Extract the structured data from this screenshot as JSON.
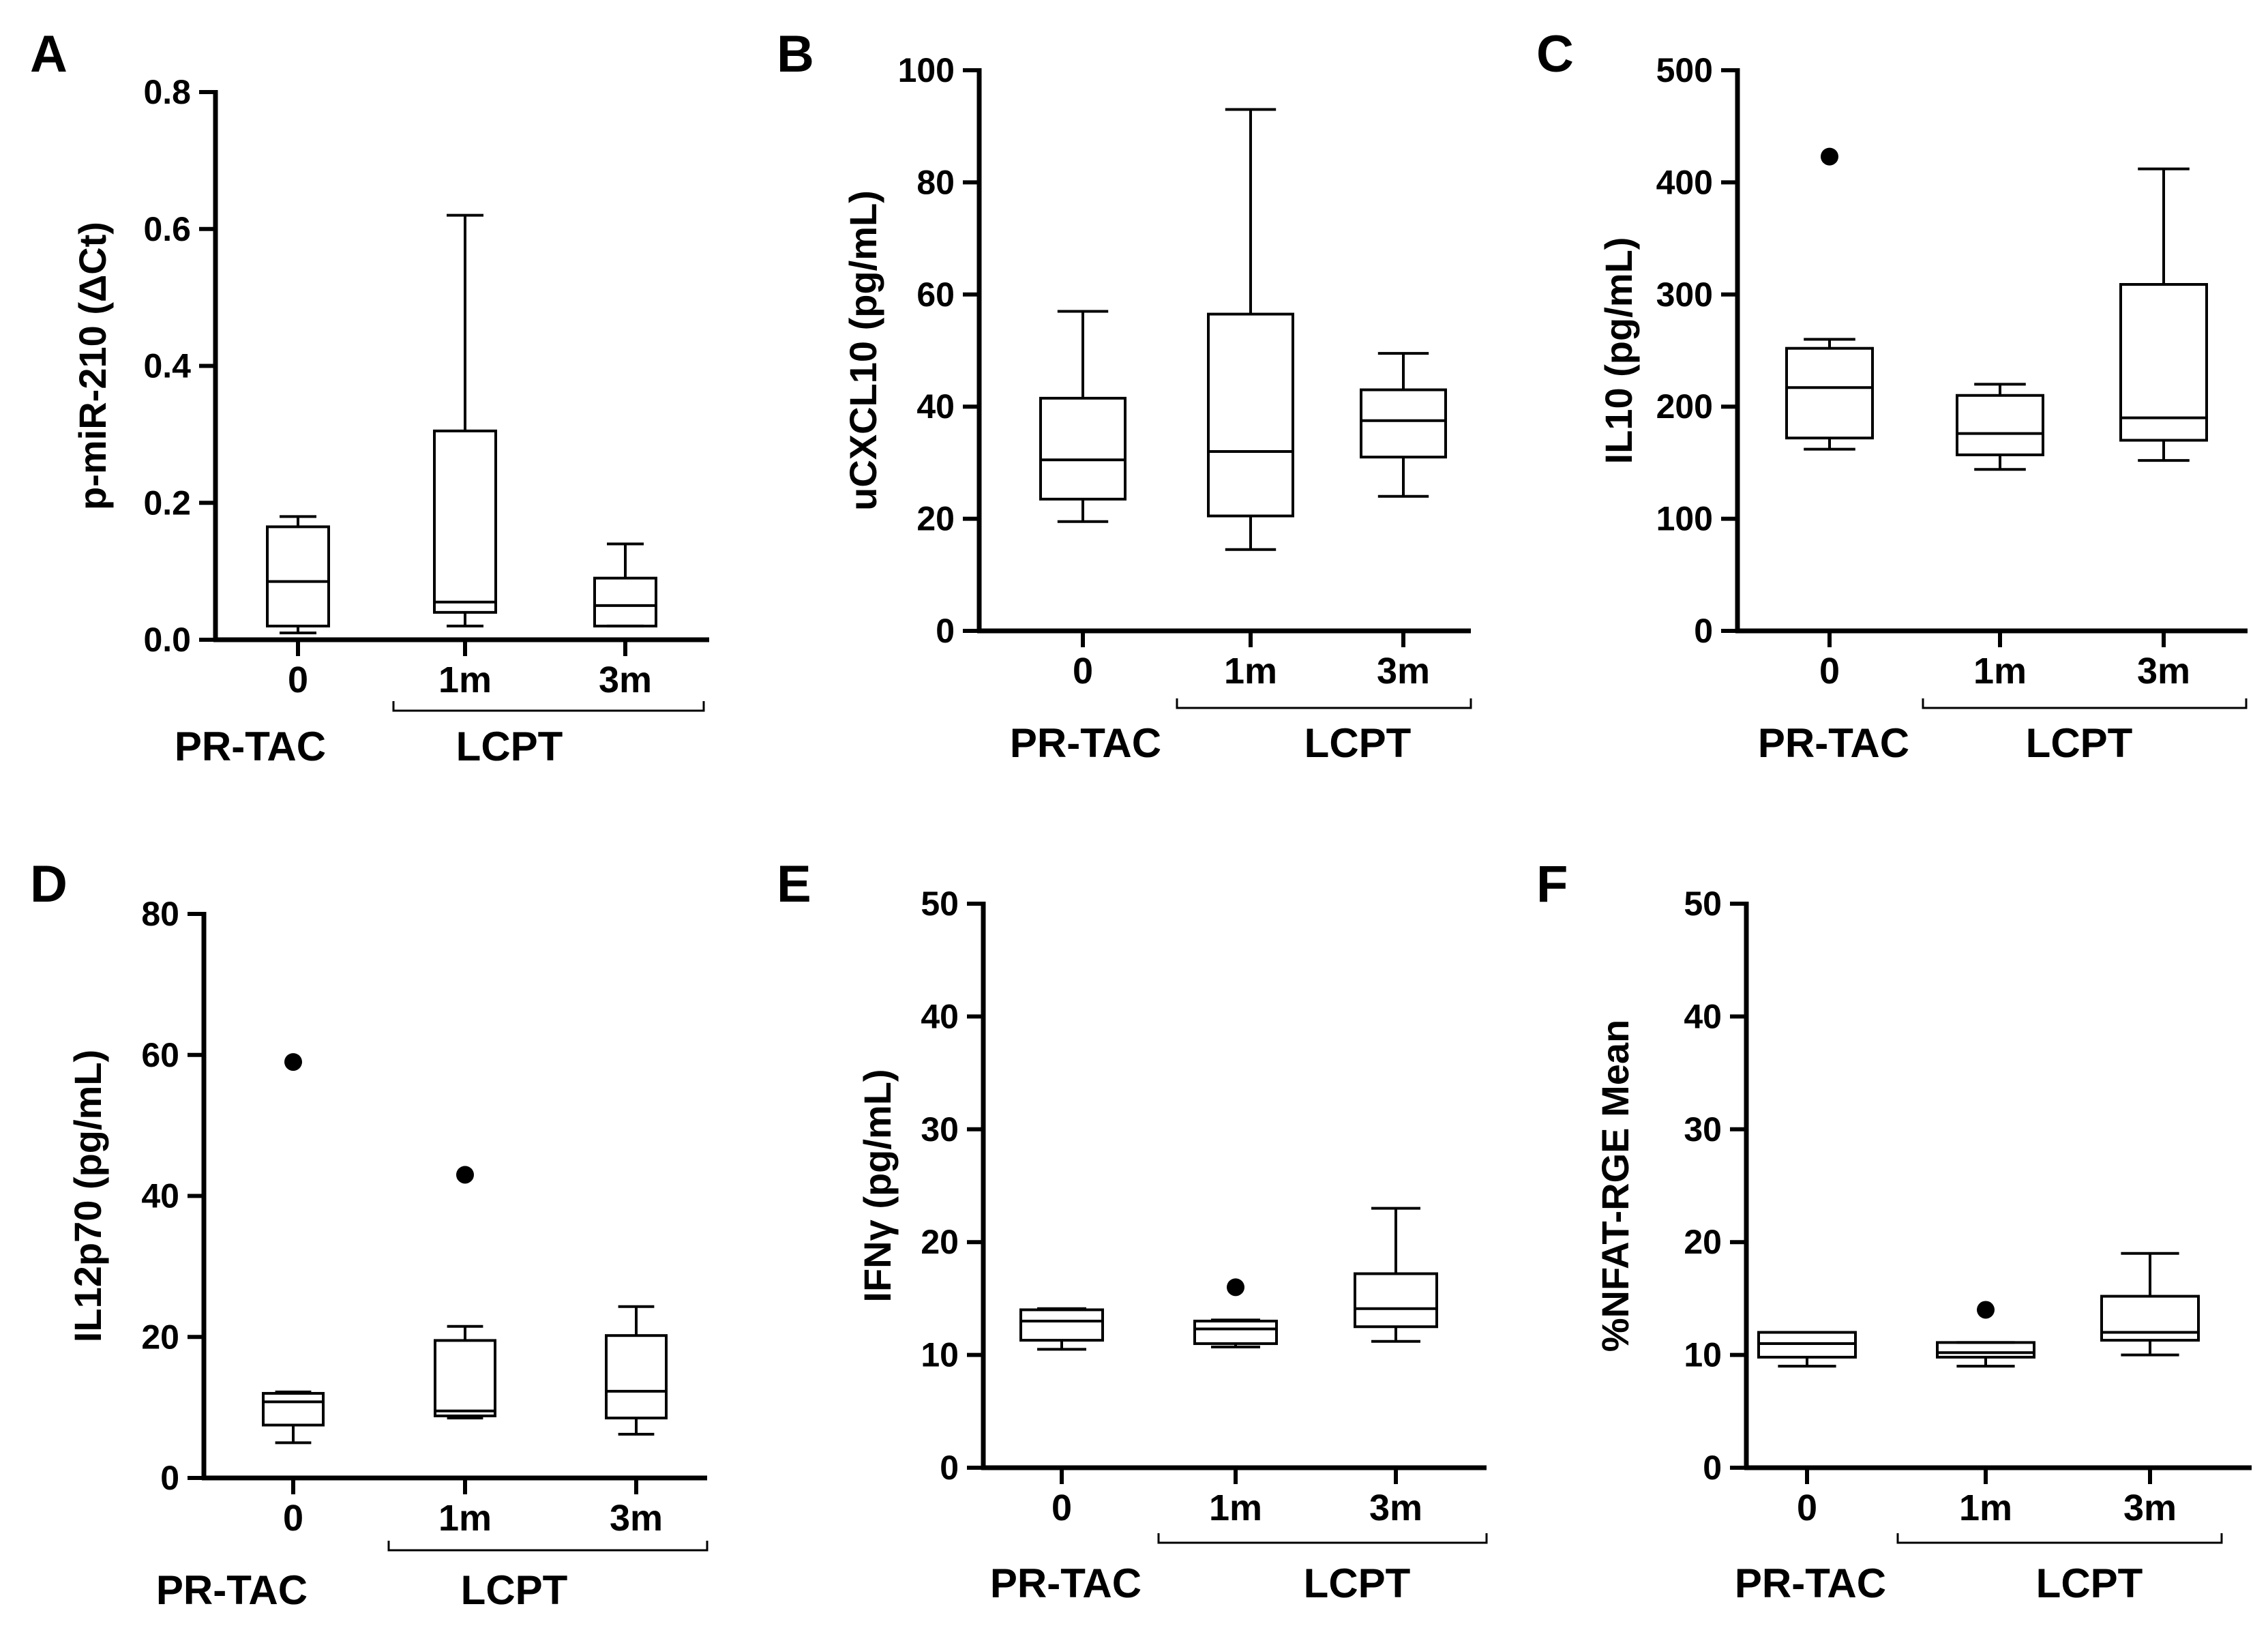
{
  "chart_data": [
    {
      "panel": "A",
      "type": "box",
      "ylabel": "p-miR-210 (ΔCt)",
      "ylim": [
        0,
        0.8
      ],
      "yticks": [
        0,
        0.2,
        0.4,
        0.6,
        0.8
      ],
      "ytick_labels": [
        "0.0",
        "0.2",
        "0.4",
        "0.6",
        "0.8"
      ],
      "categories": [
        "0",
        "1m",
        "3m"
      ],
      "groups": [
        {
          "label": "PR-TAC",
          "categories": [
            "0"
          ]
        },
        {
          "label": "LCPT",
          "categories": [
            "1m",
            "3m"
          ]
        }
      ],
      "boxes": [
        {
          "min": 0.01,
          "q1": 0.02,
          "median": 0.085,
          "q3": 0.165,
          "max": 0.18,
          "outliers": []
        },
        {
          "min": 0.02,
          "q1": 0.04,
          "median": 0.055,
          "q3": 0.305,
          "max": 0.62,
          "outliers": []
        },
        {
          "min": 0.02,
          "q1": 0.02,
          "median": 0.05,
          "q3": 0.09,
          "max": 0.14,
          "outliers": []
        }
      ]
    },
    {
      "panel": "B",
      "type": "box",
      "ylabel": "uCXCL10 (pg/mL)",
      "ylim": [
        0,
        100
      ],
      "yticks": [
        0,
        20,
        40,
        60,
        80,
        100
      ],
      "ytick_labels": [
        "0",
        "20",
        "40",
        "60",
        "80",
        "100"
      ],
      "categories": [
        "0",
        "1m",
        "3m"
      ],
      "groups": [
        {
          "label": "PR-TAC",
          "categories": [
            "0"
          ]
        },
        {
          "label": "LCPT",
          "categories": [
            "1m",
            "3m"
          ]
        }
      ],
      "boxes": [
        {
          "min": 19.5,
          "q1": 23.5,
          "median": 30.5,
          "q3": 41.5,
          "max": 57,
          "outliers": []
        },
        {
          "min": 14.5,
          "q1": 20.5,
          "median": 32,
          "q3": 56.5,
          "max": 93,
          "outliers": []
        },
        {
          "min": 24,
          "q1": 31,
          "median": 37.5,
          "q3": 43,
          "max": 49.5,
          "outliers": []
        }
      ]
    },
    {
      "panel": "C",
      "type": "box",
      "ylabel": "IL10 (pg/mL)",
      "ylim": [
        0,
        500
      ],
      "yticks": [
        0,
        100,
        200,
        300,
        400,
        500
      ],
      "ytick_labels": [
        "0",
        "100",
        "200",
        "300",
        "400",
        "500"
      ],
      "categories": [
        "0",
        "1m",
        "3m"
      ],
      "groups": [
        {
          "label": "PR-TAC",
          "categories": [
            "0"
          ]
        },
        {
          "label": "LCPT",
          "categories": [
            "1m",
            "3m"
          ]
        }
      ],
      "boxes": [
        {
          "min": 162,
          "q1": 172,
          "median": 217,
          "q3": 252,
          "max": 260,
          "outliers": [
            423
          ]
        },
        {
          "min": 144,
          "q1": 157,
          "median": 176,
          "q3": 210,
          "max": 220,
          "outliers": []
        },
        {
          "min": 152,
          "q1": 170,
          "median": 190,
          "q3": 309,
          "max": 412,
          "outliers": []
        }
      ]
    },
    {
      "panel": "D",
      "type": "box",
      "ylabel": "IL12p70 (pg/mL)",
      "ylim": [
        0,
        80
      ],
      "yticks": [
        0,
        20,
        40,
        60,
        80
      ],
      "ytick_labels": [
        "0",
        "20",
        "40",
        "60",
        "80"
      ],
      "categories": [
        "0",
        "1m",
        "3m"
      ],
      "groups": [
        {
          "label": "PR-TAC",
          "categories": [
            "0"
          ]
        },
        {
          "label": "LCPT",
          "categories": [
            "1m",
            "3m"
          ]
        }
      ],
      "boxes": [
        {
          "min": 5,
          "q1": 7.5,
          "median": 10.8,
          "q3": 12,
          "max": 12.2,
          "outliers": [
            59
          ]
        },
        {
          "min": 8.5,
          "q1": 8.8,
          "median": 9.5,
          "q3": 19.5,
          "max": 21.5,
          "outliers": [
            43
          ]
        },
        {
          "min": 6.2,
          "q1": 8.5,
          "median": 12.3,
          "q3": 20.2,
          "max": 24.3,
          "outliers": []
        }
      ]
    },
    {
      "panel": "E",
      "type": "box",
      "ylabel": "IFNγ (pg/mL)",
      "ylim": [
        0,
        50
      ],
      "yticks": [
        0,
        10,
        20,
        30,
        40,
        50
      ],
      "ytick_labels": [
        "0",
        "10",
        "20",
        "30",
        "40",
        "50"
      ],
      "categories": [
        "0",
        "1m",
        "3m"
      ],
      "groups": [
        {
          "label": "PR-TAC",
          "categories": [
            "0"
          ]
        },
        {
          "label": "LCPT",
          "categories": [
            "1m",
            "3m"
          ]
        }
      ],
      "boxes": [
        {
          "min": 10.5,
          "q1": 11.3,
          "median": 13,
          "q3": 14,
          "max": 14.1,
          "outliers": []
        },
        {
          "min": 10.7,
          "q1": 11,
          "median": 12.3,
          "q3": 13,
          "max": 13.1,
          "outliers": [
            16
          ]
        },
        {
          "min": 11.2,
          "q1": 12.5,
          "median": 14.1,
          "q3": 17.2,
          "max": 23,
          "outliers": []
        }
      ]
    },
    {
      "panel": "F",
      "type": "box",
      "ylabel": "%NFAT-RGE Mean",
      "ylim": [
        0,
        50
      ],
      "yticks": [
        0,
        10,
        20,
        30,
        40,
        50
      ],
      "ytick_labels": [
        "0",
        "10",
        "20",
        "30",
        "40",
        "50"
      ],
      "categories": [
        "0",
        "1m",
        "3m"
      ],
      "groups": [
        {
          "label": "PR-TAC",
          "categories": [
            "0"
          ]
        },
        {
          "label": "LCPT",
          "categories": [
            "1m",
            "3m"
          ]
        }
      ],
      "boxes": [
        {
          "min": 9,
          "q1": 9.8,
          "median": 11,
          "q3": 12,
          "max": 12,
          "outliers": []
        },
        {
          "min": 9,
          "q1": 9.8,
          "median": 10.2,
          "q3": 11.1,
          "max": 11.1,
          "outliers": [
            14
          ]
        },
        {
          "min": 10,
          "q1": 11.3,
          "median": 12,
          "q3": 15.2,
          "max": 19,
          "outliers": []
        }
      ]
    }
  ]
}
